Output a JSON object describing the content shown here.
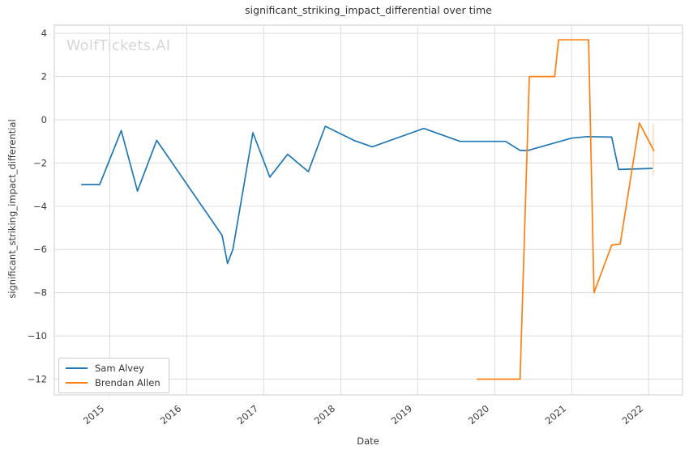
{
  "app": {
    "watermark": "WolfTickets.AI"
  },
  "chart_data": {
    "type": "line",
    "title": "significant_striking_impact_differential over time",
    "xlabel": "Date",
    "ylabel": "significant_striking_impact_differential",
    "grid": true,
    "legend_position": "lower-left",
    "xlim": [
      2014.28,
      2022.44
    ],
    "ylim": [
      -12.73,
      4.38
    ],
    "x_ticks": [
      2015,
      2016,
      2017,
      2018,
      2019,
      2020,
      2021,
      2022
    ],
    "x_tick_labels": [
      "2015",
      "2016",
      "2017",
      "2018",
      "2019",
      "2020",
      "2021",
      "2022"
    ],
    "y_ticks": [
      4,
      2,
      0,
      -2,
      -4,
      -6,
      -8,
      -10,
      -12
    ],
    "y_tick_labels": [
      "4",
      "2",
      "0",
      "−2",
      "−4",
      "−6",
      "−8",
      "−10",
      "−12"
    ],
    "series": [
      {
        "name": "Sam Alvey",
        "color": "#1f77b4",
        "points": [
          [
            2014.63,
            -3.0
          ],
          [
            2014.87,
            -3.0
          ],
          [
            2015.15,
            -0.5
          ],
          [
            2015.36,
            -3.3
          ],
          [
            2015.61,
            -0.95
          ],
          [
            2016.46,
            -5.35
          ],
          [
            2016.53,
            -6.65
          ],
          [
            2016.6,
            -6.0
          ],
          [
            2016.86,
            -0.6
          ],
          [
            2017.08,
            -2.65
          ],
          [
            2017.31,
            -1.6
          ],
          [
            2017.58,
            -2.4
          ],
          [
            2017.8,
            -0.3
          ],
          [
            2018.17,
            -0.95
          ],
          [
            2018.41,
            -1.25
          ],
          [
            2019.08,
            -0.4
          ],
          [
            2019.55,
            -1.0
          ],
          [
            2020.14,
            -1.0
          ],
          [
            2020.33,
            -1.42
          ],
          [
            2020.43,
            -1.42
          ],
          [
            2021.0,
            -0.85
          ],
          [
            2021.2,
            -0.78
          ],
          [
            2021.52,
            -0.8
          ],
          [
            2021.61,
            -2.3
          ],
          [
            2022.05,
            -2.25
          ]
        ]
      },
      {
        "name": "Brendan Allen",
        "color": "#ff7f0e",
        "points": [
          [
            2019.77,
            -12.0
          ],
          [
            2020.33,
            -12.0
          ],
          [
            2020.45,
            2.0
          ],
          [
            2020.78,
            2.0
          ],
          [
            2020.83,
            3.7
          ],
          [
            2021.22,
            3.7
          ],
          [
            2021.29,
            -8.0
          ],
          [
            2021.52,
            -5.8
          ],
          [
            2021.63,
            -5.75
          ],
          [
            2021.88,
            -0.15
          ],
          [
            2022.07,
            -1.45
          ]
        ]
      }
    ],
    "annotations": [
      {
        "type": "vline-segment",
        "x": 2022.06,
        "y1": -0.2,
        "y2": -2.6,
        "color": "#ff7f0e",
        "opacity": 0.3
      }
    ],
    "style": {
      "grid_color": "#dcdcdc",
      "spine_color": "#d5d5d5",
      "tick_text_color": "#3a3a3a",
      "line_width": 1.7
    }
  }
}
